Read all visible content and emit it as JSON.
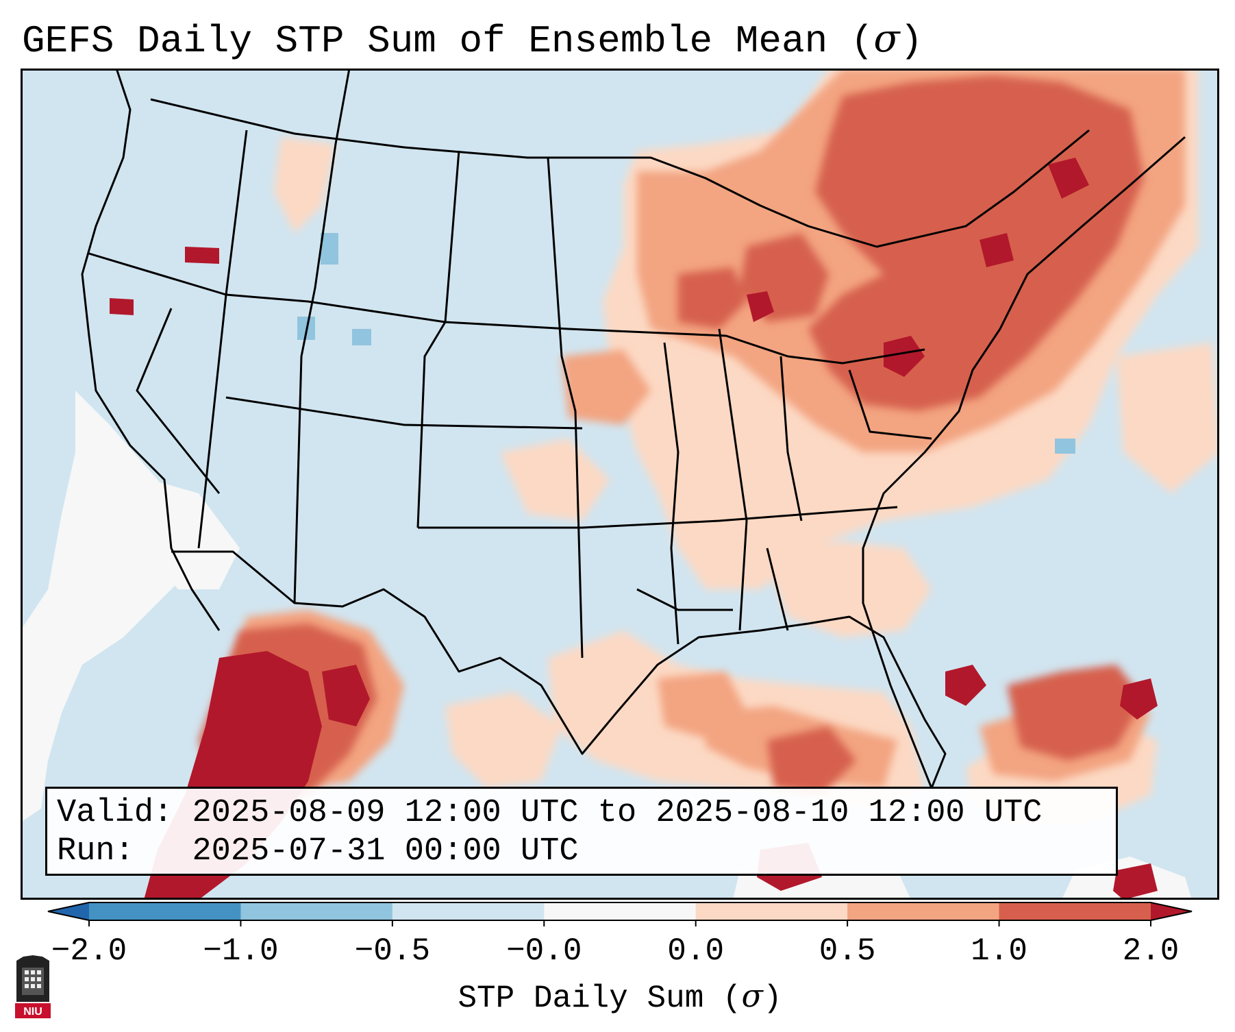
{
  "title": {
    "text": "GEFS Daily STP Sum of Ensemble Mean (",
    "symbol": "σ",
    "close": ")"
  },
  "info": {
    "valid_label": "Valid:",
    "valid_text": "2025-08-09 12:00 UTC to 2025-08-10 12:00 UTC",
    "run_label": "Run:",
    "run_text": "2025-07-31 00:00 UTC"
  },
  "colorbar": {
    "label_text": "STP Daily Sum (",
    "label_symbol": "σ",
    "label_close": ")",
    "ticks": [
      "−2.0",
      "−1.0",
      "−0.5",
      "−0.0",
      "0.0",
      "0.5",
      "1.0",
      "2.0"
    ],
    "bins": [
      {
        "from": "-2.0",
        "to": "-1.0",
        "color": "#4392c3"
      },
      {
        "from": "-1.0",
        "to": "-0.5",
        "color": "#91c4de"
      },
      {
        "from": "-0.5",
        "to": "-0.0",
        "color": "#d1e5f0"
      },
      {
        "from": "-0.0",
        "to": "0.0",
        "color": "#f7f7f7"
      },
      {
        "from": "0.0",
        "to": "0.5",
        "color": "#fcd9c4"
      },
      {
        "from": "0.5",
        "to": "1.0",
        "color": "#f3a481"
      },
      {
        "from": "1.0",
        "to": "2.0",
        "color": "#d6604d"
      }
    ],
    "under_color": "#2166ac",
    "over_color": "#b2182b"
  },
  "map": {
    "background_color": "#d1e5f0",
    "region": "Contiguous United States",
    "anomaly_regions": [
      {
        "area": "Great Lakes and Northeast",
        "category": "1.0 to 2.0"
      },
      {
        "area": "Upper Midwest",
        "category": "0.5 to 1.0"
      },
      {
        "area": "Mid-Atlantic",
        "category": "1.0 to 2.0"
      },
      {
        "area": "Northwestern Mexico",
        "category": "above 2.0"
      },
      {
        "area": "Gulf of Mexico",
        "category": "0.0 to 0.5"
      },
      {
        "area": "Southeast",
        "category": "0.0 to 0.5"
      },
      {
        "area": "Western Atlantic near Bahamas",
        "category": "1.0 to 2.0"
      },
      {
        "area": "Pacific offshore",
        "category": "-0.0 to 0.0"
      }
    ]
  },
  "logo": {
    "text": "NIU"
  }
}
